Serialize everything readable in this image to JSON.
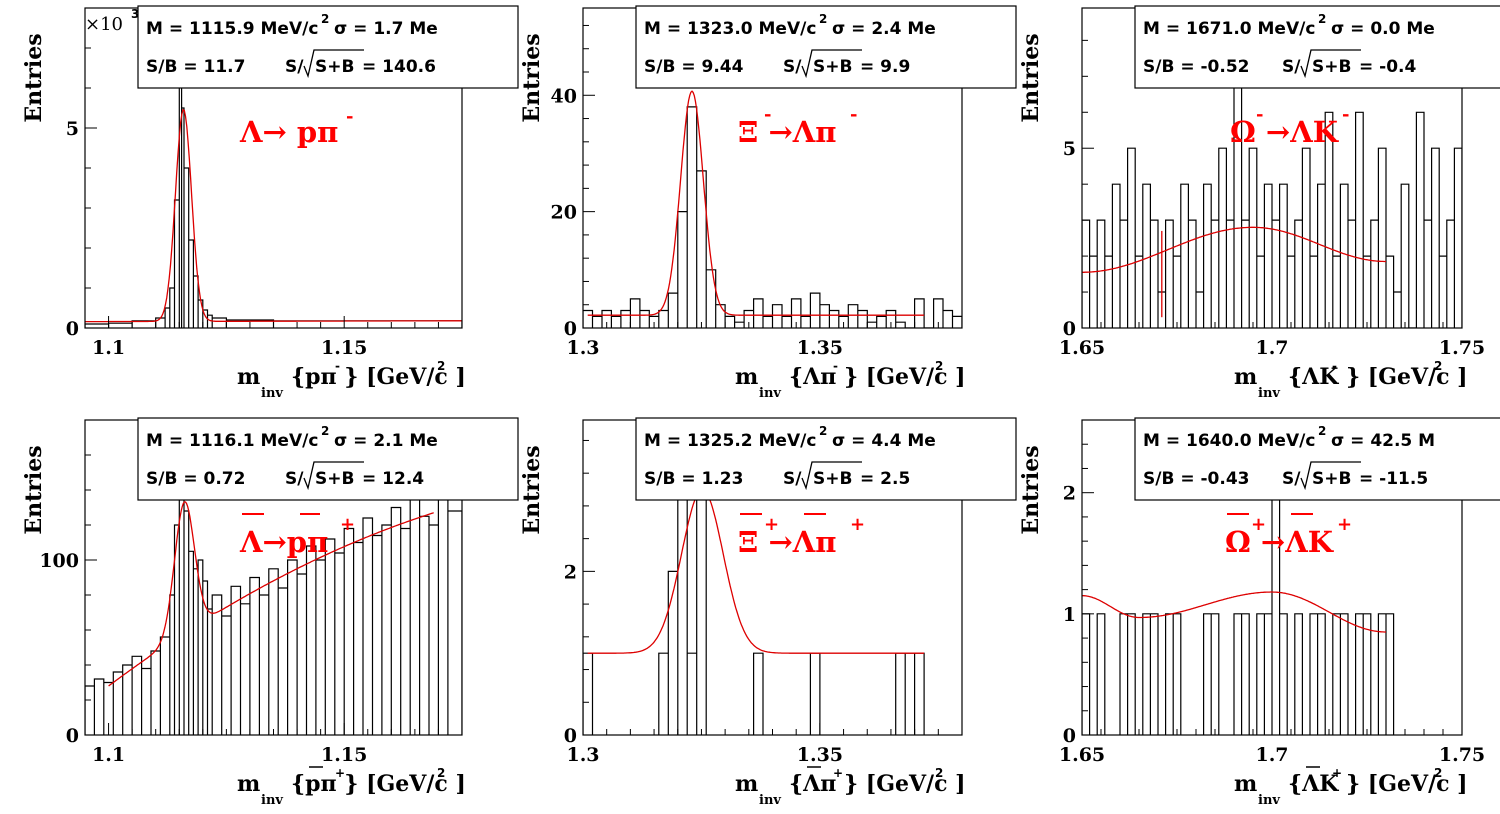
{
  "chart_data": [
    {
      "type": "histogram",
      "panel": "lambda",
      "ylabel": "Entries",
      "xlabel": {
        "m": "m",
        "sub": "inv",
        "main": "{pπ } [GeV/c ]",
        "sup_pi": "-",
        "sup_c": "2"
      },
      "stats": {
        "mass": "M = 1115.9 MeV/c",
        "mass_sup": "2",
        "sigma": "σ = 1.7 Me",
        "sb": "S/B = 11.7",
        "signif_pre": "S/",
        "signif_root": "S+B",
        "signif_val": " = 140.6"
      },
      "decay": {
        "text": "Λ→ pπ",
        "sup": "-",
        "bars": []
      },
      "multiplier": "×10",
      "multiplier_exp": "3",
      "xlim": [
        1.095,
        1.175
      ],
      "ylim": [
        0,
        8.0
      ],
      "xticks": [
        1.1,
        1.15
      ],
      "xtick_labels": [
        "1.1",
        "1.15"
      ],
      "yticks": [
        0,
        5
      ],
      "ytick_labels": [
        "0",
        "5"
      ],
      "bins": [
        [
          1.095,
          1.1,
          0.1
        ],
        [
          1.1,
          1.105,
          0.12
        ],
        [
          1.105,
          1.11,
          0.18
        ],
        [
          1.11,
          1.112,
          0.25
        ],
        [
          1.112,
          1.113,
          0.5
        ],
        [
          1.113,
          1.114,
          1.0
        ],
        [
          1.114,
          1.115,
          3.2
        ],
        [
          1.115,
          1.1155,
          6.2
        ],
        [
          1.1155,
          1.116,
          5.5
        ],
        [
          1.116,
          1.117,
          4.0
        ],
        [
          1.117,
          1.118,
          2.2
        ],
        [
          1.118,
          1.119,
          1.3
        ],
        [
          1.119,
          1.12,
          0.7
        ],
        [
          1.12,
          1.121,
          0.45
        ],
        [
          1.121,
          1.122,
          0.32
        ],
        [
          1.122,
          1.125,
          0.25
        ],
        [
          1.125,
          1.135,
          0.2
        ],
        [
          1.135,
          1.175,
          0.18
        ]
      ],
      "fit": {
        "mean": 1.1159,
        "sigma": 0.0017,
        "amp": 5.3,
        "bkg": [
          0.16,
          0.18
        ]
      }
    },
    {
      "type": "histogram",
      "panel": "xi",
      "ylabel": "Entries",
      "xlabel": {
        "m": "m",
        "sub": "inv",
        "main": "{Λπ } [GeV/c ]",
        "sup_pi": "-",
        "sup_c": "2"
      },
      "stats": {
        "mass": "M = 1323.0 MeV/c",
        "mass_sup": "2",
        "sigma": "σ = 2.4 Me",
        "sb": "S/B = 9.44",
        "signif_pre": "S/",
        "signif_root": "S+B",
        "signif_val": " = 9.9"
      },
      "decay": {
        "text": "Ξ →Λπ",
        "sup1": "-",
        "sup2": "-",
        "bars": []
      },
      "xlim": [
        1.3,
        1.38
      ],
      "ylim": [
        0,
        55
      ],
      "xticks": [
        1.3,
        1.35
      ],
      "xtick_labels": [
        "1.3",
        "1.35"
      ],
      "yticks": [
        0,
        20,
        40
      ],
      "ytick_labels": [
        "0",
        "20",
        "40"
      ],
      "bins": [
        [
          1.3,
          1.302,
          3
        ],
        [
          1.302,
          1.304,
          2
        ],
        [
          1.304,
          1.306,
          3
        ],
        [
          1.306,
          1.308,
          2
        ],
        [
          1.308,
          1.31,
          3
        ],
        [
          1.31,
          1.312,
          5
        ],
        [
          1.312,
          1.314,
          3
        ],
        [
          1.314,
          1.316,
          2
        ],
        [
          1.316,
          1.318,
          3
        ],
        [
          1.318,
          1.32,
          6
        ],
        [
          1.32,
          1.322,
          20
        ],
        [
          1.322,
          1.324,
          38
        ],
        [
          1.324,
          1.326,
          27
        ],
        [
          1.326,
          1.328,
          10
        ],
        [
          1.328,
          1.33,
          4
        ],
        [
          1.33,
          1.332,
          2
        ],
        [
          1.332,
          1.334,
          1
        ],
        [
          1.334,
          1.336,
          3
        ],
        [
          1.336,
          1.338,
          5
        ],
        [
          1.338,
          1.34,
          2
        ],
        [
          1.34,
          1.342,
          4
        ],
        [
          1.342,
          1.344,
          2
        ],
        [
          1.344,
          1.346,
          5
        ],
        [
          1.346,
          1.348,
          2
        ],
        [
          1.348,
          1.35,
          6
        ],
        [
          1.35,
          1.352,
          4
        ],
        [
          1.352,
          1.354,
          3
        ],
        [
          1.354,
          1.356,
          2
        ],
        [
          1.356,
          1.358,
          4
        ],
        [
          1.358,
          1.36,
          3
        ],
        [
          1.36,
          1.362,
          1
        ],
        [
          1.362,
          1.364,
          2
        ],
        [
          1.364,
          1.366,
          3
        ],
        [
          1.366,
          1.368,
          1
        ],
        [
          1.368,
          1.37,
          0
        ],
        [
          1.37,
          1.372,
          5
        ],
        [
          1.372,
          1.374,
          0
        ],
        [
          1.374,
          1.376,
          5
        ],
        [
          1.376,
          1.378,
          3
        ],
        [
          1.378,
          1.38,
          2
        ]
      ],
      "fit": {
        "mean": 1.323,
        "sigma": 0.0024,
        "amp": 38.5,
        "bkg": [
          2.2,
          2.2
        ],
        "xrange": [
          1.301,
          1.372
        ]
      }
    },
    {
      "type": "histogram",
      "panel": "omega",
      "ylabel": "Entries",
      "xlabel": {
        "m": "m",
        "sub": "inv",
        "main": "{ΛK } [GeV/c ]",
        "sup_pi": "-",
        "sup_c": "2"
      },
      "stats": {
        "mass": "M = 1671.0 MeV/c",
        "mass_sup": "2",
        "sigma": "σ = 0.0 Me",
        "sb": "S/B = -0.52",
        "signif_pre": "S/",
        "signif_root": "S+B",
        "signif_val": " = -0.4"
      },
      "decay": {
        "text": "Ω →ΛK",
        "sup1": "-",
        "sup2": "-",
        "bars": []
      },
      "xlim": [
        1.65,
        1.75
      ],
      "ylim": [
        0,
        8.9
      ],
      "xticks": [
        1.65,
        1.7,
        1.75
      ],
      "xtick_labels": [
        "1.65",
        "1.7",
        "1.75"
      ],
      "yticks": [
        0,
        5
      ],
      "ytick_labels": [
        "0",
        "5"
      ],
      "bins": [
        [
          1.65,
          1.652,
          3
        ],
        [
          1.652,
          1.654,
          2
        ],
        [
          1.654,
          1.656,
          3
        ],
        [
          1.656,
          1.658,
          2
        ],
        [
          1.658,
          1.66,
          4
        ],
        [
          1.66,
          1.662,
          3
        ],
        [
          1.662,
          1.664,
          5
        ],
        [
          1.664,
          1.666,
          2
        ],
        [
          1.666,
          1.668,
          4
        ],
        [
          1.668,
          1.67,
          3
        ],
        [
          1.67,
          1.672,
          1
        ],
        [
          1.672,
          1.674,
          3
        ],
        [
          1.674,
          1.676,
          2
        ],
        [
          1.676,
          1.678,
          4
        ],
        [
          1.678,
          1.68,
          3
        ],
        [
          1.68,
          1.682,
          1
        ],
        [
          1.682,
          1.684,
          4
        ],
        [
          1.684,
          1.686,
          3
        ],
        [
          1.686,
          1.688,
          5
        ],
        [
          1.688,
          1.69,
          3
        ],
        [
          1.69,
          1.692,
          7
        ],
        [
          1.692,
          1.694,
          3
        ],
        [
          1.694,
          1.696,
          5
        ],
        [
          1.696,
          1.698,
          2
        ],
        [
          1.698,
          1.7,
          4
        ],
        [
          1.7,
          1.702,
          3
        ],
        [
          1.702,
          1.704,
          4
        ],
        [
          1.704,
          1.706,
          2
        ],
        [
          1.706,
          1.708,
          3
        ],
        [
          1.708,
          1.71,
          5
        ],
        [
          1.71,
          1.712,
          2
        ],
        [
          1.712,
          1.714,
          4
        ],
        [
          1.714,
          1.716,
          6
        ],
        [
          1.716,
          1.718,
          2
        ],
        [
          1.718,
          1.72,
          4
        ],
        [
          1.72,
          1.722,
          3
        ],
        [
          1.722,
          1.724,
          6
        ],
        [
          1.724,
          1.726,
          2
        ],
        [
          1.726,
          1.728,
          3
        ],
        [
          1.728,
          1.73,
          5
        ],
        [
          1.73,
          1.732,
          2
        ],
        [
          1.732,
          1.734,
          1
        ],
        [
          1.734,
          1.736,
          4
        ],
        [
          1.736,
          1.738,
          0
        ],
        [
          1.738,
          1.74,
          6
        ],
        [
          1.74,
          1.742,
          3
        ],
        [
          1.742,
          1.744,
          5
        ],
        [
          1.744,
          1.746,
          2
        ],
        [
          1.746,
          1.748,
          3
        ],
        [
          1.748,
          1.75,
          5
        ]
      ],
      "fit": {
        "poly": [
          1.65,
          1.55,
          1.695,
          2.8,
          1.73,
          1.85
        ],
        "spike": [
          1.671,
          0.3
        ],
        "xrange": [
          1.65,
          1.73
        ]
      }
    },
    {
      "type": "histogram",
      "panel": "antilambda",
      "ylabel": "Entries",
      "xlabel": {
        "m": "m",
        "sub": "inv",
        "main": "{pπ } [GeV/c ]",
        "sup_pi": "+",
        "sup_c": "2",
        "bar_over": "p"
      },
      "stats": {
        "mass": "M = 1116.1 MeV/c",
        "mass_sup": "2",
        "sigma": "σ = 2.1 Me",
        "sb": "S/B = 0.72",
        "signif_pre": "S/",
        "signif_root": "S+B",
        "signif_val": " = 12.4"
      },
      "decay": {
        "text": "Λ→pπ",
        "sup": "+",
        "bars": [
          "Λ",
          "p"
        ]
      },
      "xlim": [
        1.095,
        1.175
      ],
      "ylim": [
        0,
        180
      ],
      "xticks": [
        1.1,
        1.15
      ],
      "xtick_labels": [
        "1.1",
        "1.15"
      ],
      "yticks": [
        0,
        100
      ],
      "ytick_labels": [
        "0",
        "100"
      ],
      "bins": [
        [
          1.095,
          1.097,
          28
        ],
        [
          1.097,
          1.099,
          32
        ],
        [
          1.099,
          1.101,
          30
        ],
        [
          1.101,
          1.103,
          36
        ],
        [
          1.103,
          1.105,
          40
        ],
        [
          1.105,
          1.107,
          45
        ],
        [
          1.107,
          1.109,
          38
        ],
        [
          1.109,
          1.111,
          48
        ],
        [
          1.111,
          1.113,
          56
        ],
        [
          1.113,
          1.114,
          80
        ],
        [
          1.114,
          1.115,
          120
        ],
        [
          1.115,
          1.116,
          142
        ],
        [
          1.116,
          1.117,
          128
        ],
        [
          1.117,
          1.118,
          105
        ],
        [
          1.118,
          1.119,
          95
        ],
        [
          1.119,
          1.12,
          100
        ],
        [
          1.12,
          1.121,
          88
        ],
        [
          1.121,
          1.122,
          72
        ],
        [
          1.122,
          1.124,
          80
        ],
        [
          1.124,
          1.126,
          68
        ],
        [
          1.126,
          1.128,
          85
        ],
        [
          1.128,
          1.13,
          75
        ],
        [
          1.13,
          1.132,
          90
        ],
        [
          1.132,
          1.134,
          80
        ],
        [
          1.134,
          1.136,
          95
        ],
        [
          1.136,
          1.138,
          84
        ],
        [
          1.138,
          1.14,
          100
        ],
        [
          1.14,
          1.142,
          92
        ],
        [
          1.142,
          1.144,
          108
        ],
        [
          1.144,
          1.146,
          100
        ],
        [
          1.146,
          1.148,
          112
        ],
        [
          1.148,
          1.15,
          104
        ],
        [
          1.15,
          1.152,
          118
        ],
        [
          1.152,
          1.154,
          110
        ],
        [
          1.154,
          1.156,
          124
        ],
        [
          1.156,
          1.158,
          114
        ],
        [
          1.158,
          1.16,
          120
        ],
        [
          1.16,
          1.162,
          130
        ],
        [
          1.162,
          1.164,
          118
        ],
        [
          1.164,
          1.166,
          135
        ],
        [
          1.166,
          1.168,
          125
        ],
        [
          1.168,
          1.17,
          120
        ],
        [
          1.17,
          1.172,
          140
        ],
        [
          1.172,
          1.175,
          128
        ]
      ],
      "fit": {
        "mean": 1.1161,
        "sigma": 0.0021,
        "amp": 75,
        "bkg": [
          28,
          127
        ],
        "bkg_curve": 0.4,
        "xrange": [
          1.1,
          1.169
        ]
      }
    },
    {
      "type": "histogram",
      "panel": "antixi",
      "ylabel": "Entries",
      "xlabel": {
        "m": "m",
        "sub": "inv",
        "main": "{Λπ } [GeV/c ]",
        "sup_pi": "+",
        "sup_c": "2",
        "bar_over": "Λ"
      },
      "stats": {
        "mass": "M = 1325.2 MeV/c",
        "mass_sup": "2",
        "sigma": "σ = 4.4 Me",
        "sb": "S/B = 1.23",
        "signif_pre": "S/",
        "signif_root": "S+B",
        "signif_val": " = 2.5"
      },
      "decay": {
        "text": "Ξ →Λπ",
        "sup1": "+",
        "sup2": "+",
        "bars": [
          "Ξ",
          "Λ"
        ]
      },
      "xlim": [
        1.3,
        1.38
      ],
      "ylim": [
        0,
        3.85
      ],
      "xticks": [
        1.3,
        1.35
      ],
      "xtick_labels": [
        "1.3",
        "1.35"
      ],
      "yticks": [
        0,
        2
      ],
      "ytick_labels": [
        "0",
        "2"
      ],
      "bins": [
        [
          1.3,
          1.302,
          1
        ],
        [
          1.316,
          1.318,
          1
        ],
        [
          1.318,
          1.32,
          2
        ],
        [
          1.32,
          1.322,
          3
        ],
        [
          1.322,
          1.324,
          1
        ],
        [
          1.324,
          1.326,
          3
        ],
        [
          1.336,
          1.338,
          1
        ],
        [
          1.348,
          1.35,
          1
        ],
        [
          1.366,
          1.368,
          1
        ],
        [
          1.368,
          1.37,
          1
        ],
        [
          1.37,
          1.372,
          1
        ]
      ],
      "fit": {
        "mean": 1.3252,
        "sigma": 0.0044,
        "amp": 2.0,
        "bkg": [
          1.0,
          1.0
        ],
        "xrange": [
          1.301,
          1.372
        ]
      }
    },
    {
      "type": "histogram",
      "panel": "antiomega",
      "ylabel": "Entries",
      "xlabel": {
        "m": "m",
        "sub": "inv",
        "main": "{ΛK } [GeV/c ]",
        "sup_pi": "+",
        "sup_c": "2",
        "bar_over": "Λ"
      },
      "stats": {
        "mass": "M = 1640.0 MeV/c",
        "mass_sup": "2",
        "sigma": "σ = 42.5 M",
        "sb": "S/B = -0.43",
        "signif_pre": "S/",
        "signif_root": "S+B",
        "signif_val": " = -11.5"
      },
      "decay": {
        "text": "Ω →ΛK",
        "sup1": "+",
        "sup2": "+",
        "bars": [
          "Ω",
          "Λ"
        ]
      },
      "xlim": [
        1.65,
        1.75
      ],
      "ylim": [
        0,
        2.6
      ],
      "xticks": [
        1.65,
        1.7,
        1.75
      ],
      "xtick_labels": [
        "1.65",
        "1.7",
        "1.75"
      ],
      "yticks": [
        0,
        1,
        2
      ],
      "ytick_labels": [
        "0",
        "1",
        "2"
      ],
      "bins": [
        [
          1.65,
          1.652,
          1
        ],
        [
          1.654,
          1.656,
          1
        ],
        [
          1.66,
          1.662,
          1
        ],
        [
          1.662,
          1.664,
          1
        ],
        [
          1.666,
          1.668,
          1
        ],
        [
          1.668,
          1.67,
          1
        ],
        [
          1.672,
          1.674,
          1
        ],
        [
          1.674,
          1.676,
          1
        ],
        [
          1.682,
          1.684,
          1
        ],
        [
          1.684,
          1.686,
          1
        ],
        [
          1.69,
          1.692,
          1
        ],
        [
          1.692,
          1.694,
          1
        ],
        [
          1.696,
          1.698,
          1
        ],
        [
          1.698,
          1.7,
          1
        ],
        [
          1.7,
          1.702,
          2
        ],
        [
          1.702,
          1.704,
          1
        ],
        [
          1.706,
          1.708,
          1
        ],
        [
          1.71,
          1.712,
          1
        ],
        [
          1.712,
          1.714,
          1
        ],
        [
          1.716,
          1.718,
          1
        ],
        [
          1.718,
          1.72,
          1
        ],
        [
          1.722,
          1.724,
          1
        ],
        [
          1.724,
          1.726,
          1
        ],
        [
          1.728,
          1.73,
          1
        ],
        [
          1.73,
          1.732,
          1
        ]
      ],
      "fit": {
        "poly": [
          1.65,
          1.15,
          1.665,
          0.97,
          1.7,
          1.18,
          1.73,
          0.85
        ],
        "xrange": [
          1.65,
          1.73
        ]
      }
    }
  ]
}
